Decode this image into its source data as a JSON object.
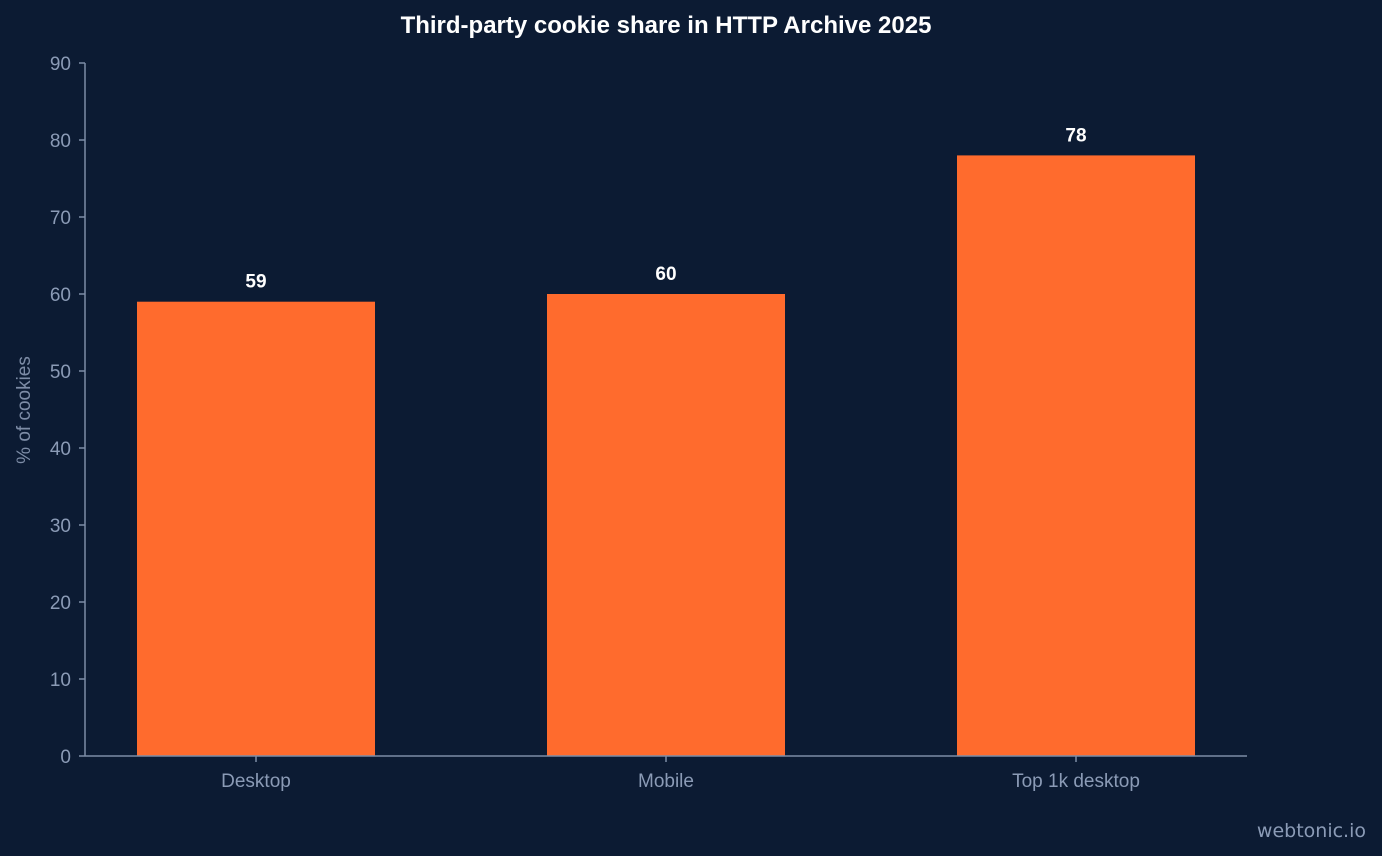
{
  "chart_data": {
    "type": "bar",
    "title": "Third-party cookie share in HTTP Archive 2025",
    "ylabel": "% of cookies",
    "xlabel": "",
    "categories": [
      "Desktop",
      "Mobile",
      "Top 1k desktop"
    ],
    "values": [
      59,
      60,
      78
    ],
    "ylim": [
      0,
      90
    ],
    "yticks": [
      0,
      10,
      20,
      30,
      40,
      50,
      60,
      70,
      80,
      90
    ],
    "grid": false,
    "bar_color": "#ff6b2d",
    "axis_color": "#7d8ca6",
    "background": "#0c1b33"
  },
  "watermark": "webtonic.io"
}
